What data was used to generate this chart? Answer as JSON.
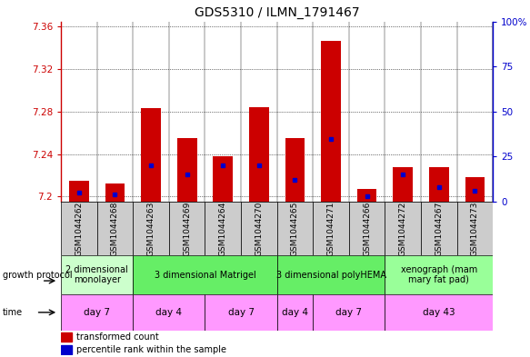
{
  "title": "GDS5310 / ILMN_1791467",
  "samples": [
    "GSM1044262",
    "GSM1044268",
    "GSM1044263",
    "GSM1044269",
    "GSM1044264",
    "GSM1044270",
    "GSM1044265",
    "GSM1044271",
    "GSM1044266",
    "GSM1044272",
    "GSM1044267",
    "GSM1044273"
  ],
  "transformed_count": [
    7.215,
    7.212,
    7.283,
    7.255,
    7.238,
    7.284,
    7.255,
    7.347,
    7.207,
    7.228,
    7.228,
    7.218
  ],
  "percentile_rank": [
    5,
    4,
    20,
    15,
    20,
    20,
    12,
    35,
    3,
    15,
    8,
    6
  ],
  "ylim_left": [
    7.195,
    7.365
  ],
  "bar_bottom": 7.195,
  "ylim_right": [
    0,
    100
  ],
  "yticks_left": [
    7.2,
    7.24,
    7.28,
    7.32,
    7.36
  ],
  "ytick_labels_left": [
    "7.2",
    "7.24",
    "7.28",
    "7.32",
    "7.36"
  ],
  "yticks_right": [
    0,
    25,
    50,
    75,
    100
  ],
  "ytick_labels_right": [
    "0",
    "25",
    "50",
    "75",
    "100%"
  ],
  "bar_color": "#cc0000",
  "percentile_color": "#0000cc",
  "bar_width": 0.55,
  "growth_protocol_groups": [
    {
      "label": "2 dimensional\nmonolayer",
      "start": 0,
      "end": 2,
      "color": "#ccffcc"
    },
    {
      "label": "3 dimensional Matrigel",
      "start": 2,
      "end": 6,
      "color": "#66ee66"
    },
    {
      "label": "3 dimensional polyHEMA",
      "start": 6,
      "end": 9,
      "color": "#66ee66"
    },
    {
      "label": "xenograph (mam\nmary fat pad)",
      "start": 9,
      "end": 12,
      "color": "#99ff99"
    }
  ],
  "time_groups": [
    {
      "label": "day 7",
      "start": 0,
      "end": 2
    },
    {
      "label": "day 4",
      "start": 2,
      "end": 4
    },
    {
      "label": "day 7",
      "start": 4,
      "end": 6
    },
    {
      "label": "day 4",
      "start": 6,
      "end": 7
    },
    {
      "label": "day 7",
      "start": 7,
      "end": 9
    },
    {
      "label": "day 43",
      "start": 9,
      "end": 12
    }
  ],
  "time_color": "#ff99ff",
  "sample_bg_color": "#cccccc",
  "xlabel_growth": "growth protocol",
  "xlabel_time": "time",
  "legend_items": [
    {
      "label": "transformed count",
      "color": "#cc0000"
    },
    {
      "label": "percentile rank within the sample",
      "color": "#0000cc"
    }
  ],
  "title_fontsize": 10,
  "tick_fontsize": 7.5,
  "sample_fontsize": 6.5,
  "annot_fontsize": 7
}
